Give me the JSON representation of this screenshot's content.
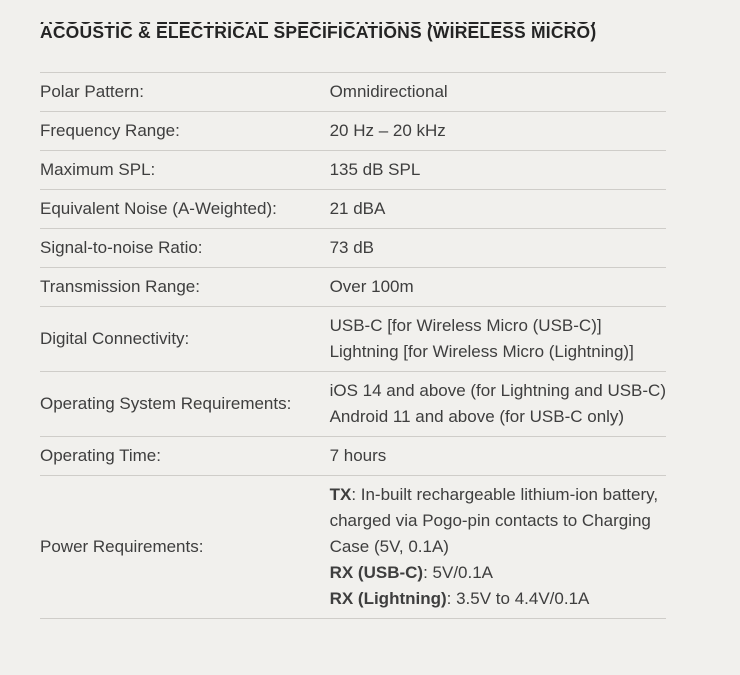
{
  "page": {
    "colors": {
      "background": "#f1f0ed",
      "divider": "#cfcdc9",
      "text": "#3e3e3e",
      "title": "#242424"
    }
  },
  "header": {
    "title": "ACOUSTIC & ELECTRICAL SPECIFICATIONS (WIRELESS MICRO)"
  },
  "spec_table": {
    "rows": [
      {
        "label": "Polar Pattern:",
        "value_lines": [
          {
            "segments": [
              {
                "text": "Omnidirectional"
              }
            ]
          }
        ]
      },
      {
        "label": "Frequency Range:",
        "value_lines": [
          {
            "segments": [
              {
                "text": "20 Hz – 20 kHz"
              }
            ]
          }
        ]
      },
      {
        "label": "Maximum SPL:",
        "value_lines": [
          {
            "segments": [
              {
                "text": "135 dB SPL"
              }
            ]
          }
        ]
      },
      {
        "label": "Equivalent Noise (A-Weighted):",
        "value_lines": [
          {
            "segments": [
              {
                "text": "21 dBA"
              }
            ]
          }
        ]
      },
      {
        "label": "Signal-to-noise Ratio:",
        "value_lines": [
          {
            "segments": [
              {
                "text": "73 dB"
              }
            ]
          }
        ]
      },
      {
        "label": "Transmission Range:",
        "value_lines": [
          {
            "segments": [
              {
                "text": "Over 100m"
              }
            ]
          }
        ]
      },
      {
        "label": "Digital Connectivity:",
        "value_lines": [
          {
            "segments": [
              {
                "text": "USB-C [for Wireless Micro (USB-C)]"
              }
            ]
          },
          {
            "segments": [
              {
                "text": "Lightning [for Wireless Micro (Lightning)]"
              }
            ]
          }
        ]
      },
      {
        "label": "Operating System Requirements:",
        "value_lines": [
          {
            "segments": [
              {
                "text": "iOS 14 and above (for Lightning and USB-C)"
              }
            ]
          },
          {
            "segments": [
              {
                "text": "Android 11 and above (for USB-C only)"
              }
            ]
          }
        ]
      },
      {
        "label": "Operating Time:",
        "value_lines": [
          {
            "segments": [
              {
                "text": "7 hours"
              }
            ]
          }
        ]
      },
      {
        "label": "Power Requirements:",
        "value_lines": [
          {
            "segments": [
              {
                "text": "TX",
                "bold": true
              },
              {
                "text": ": In-built rechargeable lithium-ion battery,"
              }
            ]
          },
          {
            "segments": [
              {
                "text": "charged via Pogo-pin contacts to Charging"
              }
            ]
          },
          {
            "segments": [
              {
                "text": "Case (5V, 0.1A)"
              }
            ]
          },
          {
            "segments": [
              {
                "text": "RX (USB-C)",
                "bold": true
              },
              {
                "text": ": 5V/0.1A"
              }
            ]
          },
          {
            "segments": [
              {
                "text": "RX (Lightning)",
                "bold": true
              },
              {
                "text": ": 3.5V to 4.4V/0.1A"
              }
            ]
          }
        ]
      }
    ]
  }
}
